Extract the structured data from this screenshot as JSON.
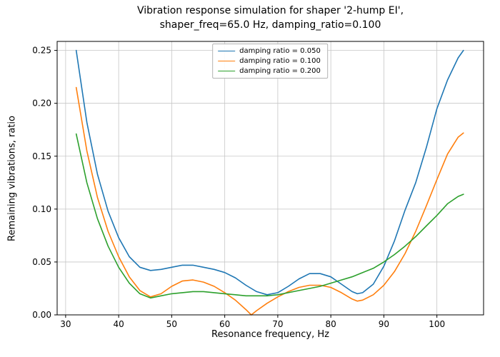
{
  "chart_data": {
    "type": "line",
    "title": "Vibration response simulation for shaper '2-hump EI',\nshaper_freq=65.0 Hz, damping_ratio=0.100",
    "title_lines": [
      "Vibration response simulation for shaper '2-hump EI',",
      "shaper_freq=65.0 Hz, damping_ratio=0.100"
    ],
    "xlabel": "Resonance frequency, Hz",
    "ylabel": "Remaining vibrations, ratio",
    "xlim": [
      28.4,
      108.8
    ],
    "ylim": [
      0,
      0.2585
    ],
    "xticks": [
      30,
      40,
      50,
      60,
      70,
      80,
      90,
      100
    ],
    "xtick_labels": [
      "30",
      "40",
      "50",
      "60",
      "70",
      "80",
      "90",
      "100"
    ],
    "yticks": [
      0.0,
      0.05,
      0.1,
      0.15,
      0.2,
      0.25
    ],
    "ytick_labels": [
      "0.00",
      "0.05",
      "0.10",
      "0.15",
      "0.20",
      "0.25"
    ],
    "grid": true,
    "legend_position": "upper center",
    "x": [
      32,
      34,
      36,
      38,
      40,
      42,
      44,
      46,
      48,
      50,
      52,
      54,
      56,
      58,
      60,
      62,
      64,
      65,
      66,
      68,
      70,
      72,
      74,
      76,
      78,
      80,
      82,
      84,
      85,
      86,
      88,
      90,
      92,
      94,
      96,
      98,
      100,
      102,
      104,
      105
    ],
    "series": [
      {
        "name": "damping ratio = 0.050",
        "color": "#1f77b4",
        "values": [
          0.25,
          0.182,
          0.133,
          0.098,
          0.073,
          0.055,
          0.045,
          0.042,
          0.043,
          0.045,
          0.047,
          0.047,
          0.045,
          0.043,
          0.04,
          0.035,
          0.028,
          0.025,
          0.022,
          0.019,
          0.021,
          0.027,
          0.034,
          0.039,
          0.039,
          0.036,
          0.029,
          0.022,
          0.02,
          0.021,
          0.029,
          0.046,
          0.07,
          0.099,
          0.125,
          0.158,
          0.195,
          0.222,
          0.243,
          0.25
        ]
      },
      {
        "name": "damping ratio = 0.100",
        "color": "#ff7f0e",
        "values": [
          0.215,
          0.155,
          0.111,
          0.079,
          0.055,
          0.036,
          0.023,
          0.017,
          0.02,
          0.027,
          0.032,
          0.033,
          0.031,
          0.027,
          0.021,
          0.014,
          0.005,
          0.0,
          0.004,
          0.011,
          0.017,
          0.022,
          0.026,
          0.028,
          0.028,
          0.026,
          0.021,
          0.015,
          0.013,
          0.014,
          0.019,
          0.028,
          0.041,
          0.058,
          0.079,
          0.103,
          0.128,
          0.152,
          0.168,
          0.172
        ]
      },
      {
        "name": "damping ratio = 0.200",
        "color": "#2ca02c",
        "values": [
          0.171,
          0.125,
          0.091,
          0.065,
          0.045,
          0.03,
          0.02,
          0.016,
          0.018,
          0.02,
          0.021,
          0.022,
          0.022,
          0.021,
          0.02,
          0.019,
          0.018,
          0.018,
          0.018,
          0.018,
          0.019,
          0.021,
          0.023,
          0.025,
          0.027,
          0.03,
          0.033,
          0.036,
          0.038,
          0.04,
          0.044,
          0.05,
          0.057,
          0.065,
          0.074,
          0.084,
          0.094,
          0.105,
          0.112,
          0.114
        ]
      }
    ],
    "colors": {
      "grid": "#c6c6c6",
      "frame": "#000000",
      "background": "#ffffff"
    }
  }
}
